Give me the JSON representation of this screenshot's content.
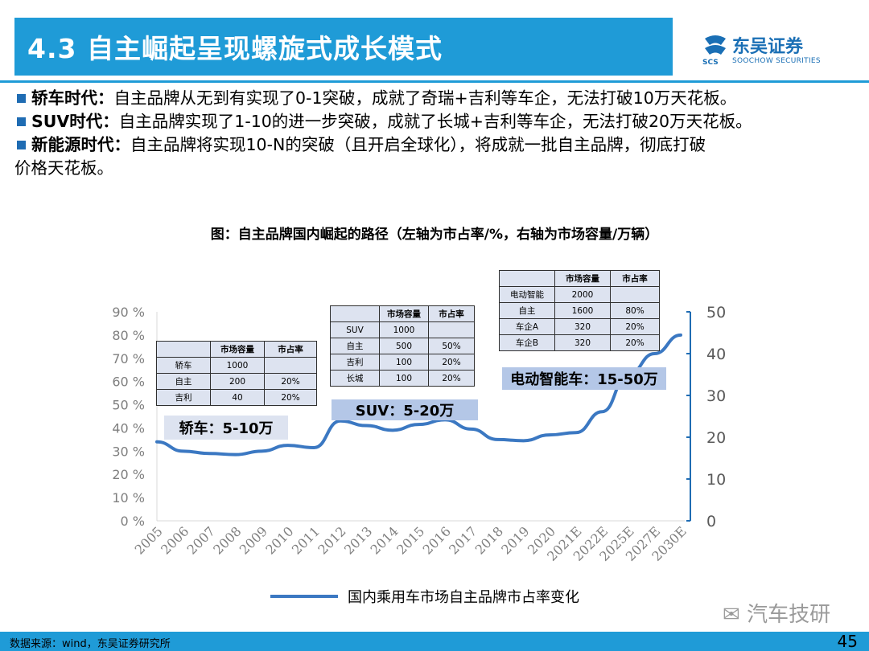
{
  "header": {
    "title": "4.3 自主崛起呈现螺旋式成长模式",
    "logo_cn": "东吴证券",
    "logo_en": "SOOCHOW SECURITIES",
    "logo_mark": "SCS"
  },
  "bullets": [
    {
      "key": "轿车时代：",
      "text": "自主品牌从无到有实现了0-1突破，成就了奇瑞+吉利等车企，无法打破10万天花板。"
    },
    {
      "key": "SUV时代：",
      "text": "自主品牌实现了1-10的进一步突破，成就了长城+吉利等车企，无法打破20万天花板。"
    },
    {
      "key": "新能源时代：",
      "text": "自主品牌将实现10-N的突破（且开启全球化），将成就一批自主品牌，彻底打破",
      "text2": "价格天花板。"
    }
  ],
  "figure_title": "图：自主品牌国内崛起的路径（左轴为市占率/%，右轴为市场容量/万辆）",
  "tables": [
    {
      "rows": [
        [
          "",
          "市场容量",
          "市占率"
        ],
        [
          "轿车",
          "1000",
          ""
        ],
        [
          "自主",
          "200",
          "20%"
        ],
        [
          "吉利",
          "40",
          "20%"
        ]
      ]
    },
    {
      "rows": [
        [
          "",
          "市场容量",
          "市占率"
        ],
        [
          "SUV",
          "1000",
          ""
        ],
        [
          "自主",
          "500",
          "50%"
        ],
        [
          "吉利",
          "100",
          "20%"
        ],
        [
          "长城",
          "100",
          "20%"
        ]
      ]
    },
    {
      "rows": [
        [
          "",
          "市场容量",
          "市占率"
        ],
        [
          "电动智能",
          "2000",
          ""
        ],
        [
          "自主",
          "1600",
          "80%"
        ],
        [
          "车企A",
          "320",
          "20%"
        ],
        [
          "车企B",
          "320",
          "20%"
        ]
      ]
    }
  ],
  "eras": [
    {
      "label": "轿车：5-10万"
    },
    {
      "label": "SUV：5-20万"
    },
    {
      "label": "电动智能车：15-50万"
    }
  ],
  "chart_data": {
    "type": "line",
    "title": "",
    "x": [
      "2005",
      "2006",
      "2007",
      "2008",
      "2009",
      "2010",
      "2011",
      "2012",
      "2013",
      "2014",
      "2015",
      "2016",
      "2017",
      "2018",
      "2019",
      "2020",
      "2021E",
      "2022E",
      "2025E",
      "2027E",
      "2030E"
    ],
    "series": [
      {
        "name": "国内乘用车市场自主品牌市占率变化",
        "values": [
          34,
          30,
          29,
          28.5,
          30,
          32.5,
          31.5,
          43,
          41,
          39,
          41.5,
          43.5,
          39.5,
          35,
          34.5,
          37,
          38,
          47,
          63,
          72,
          80
        ],
        "color": "#3b78c2"
      }
    ],
    "y_left": {
      "ticks": [
        "0 %",
        "10 %",
        "20 %",
        "30 %",
        "40 %",
        "50 %",
        "60 %",
        "70 %",
        "80 %",
        "90 %"
      ],
      "ylim": [
        0,
        90
      ]
    },
    "y_right": {
      "ticks": [
        "0",
        "10",
        "20",
        "30",
        "40",
        "50"
      ],
      "ylim": [
        0,
        50
      ]
    },
    "legend": "bottom-center",
    "grid": false
  },
  "watermark": "汽车技研",
  "footer": {
    "source": "数据来源：wind，东吴证券研究所",
    "page": "45"
  }
}
